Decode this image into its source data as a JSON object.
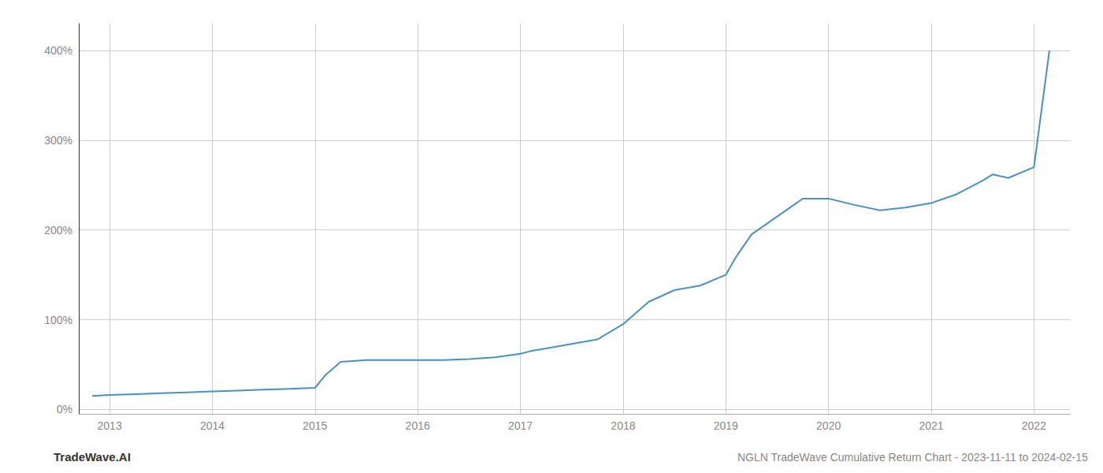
{
  "chart_data": {
    "type": "line",
    "title": "NGLN TradeWave Cumulative Return Chart - 2023-11-11 to 2024-02-15",
    "annotations": [
      "TradeWave.AI"
    ],
    "color": "#4a90c4",
    "x": [
      2012.83,
      2013.0,
      2013.25,
      2013.5,
      2013.75,
      2014.0,
      2014.25,
      2014.5,
      2014.75,
      2015.0,
      2015.1,
      2015.25,
      2015.5,
      2015.75,
      2016.0,
      2016.25,
      2016.5,
      2016.75,
      2017.0,
      2017.1,
      2017.25,
      2017.5,
      2017.75,
      2018.0,
      2018.25,
      2018.5,
      2018.75,
      2019.0,
      2019.1,
      2019.25,
      2019.5,
      2019.75,
      2020.0,
      2020.25,
      2020.5,
      2020.75,
      2021.0,
      2021.25,
      2021.5,
      2021.6,
      2021.75,
      2022.0,
      2022.15
    ],
    "values": [
      15,
      16,
      17,
      18,
      19,
      20,
      21,
      22,
      23,
      24,
      38,
      53,
      55,
      55,
      55,
      55,
      56,
      58,
      62,
      65,
      68,
      73,
      78,
      95,
      120,
      133,
      138,
      150,
      170,
      195,
      215,
      235,
      235,
      228,
      222,
      225,
      230,
      240,
      255,
      262,
      258,
      270,
      400
    ],
    "xlim": [
      2012.7,
      2022.35
    ],
    "xticks": [
      2013,
      2014,
      2015,
      2016,
      2017,
      2018,
      2019,
      2020,
      2021,
      2022
    ],
    "ylim": [
      -5,
      430
    ],
    "yticks": [
      {
        "value": 0,
        "label": "0%"
      },
      {
        "value": 100,
        "label": "100%"
      },
      {
        "value": 200,
        "label": "200%"
      },
      {
        "value": 300,
        "label": "300%"
      },
      {
        "value": 400,
        "label": "400%"
      }
    ],
    "grid": true
  }
}
